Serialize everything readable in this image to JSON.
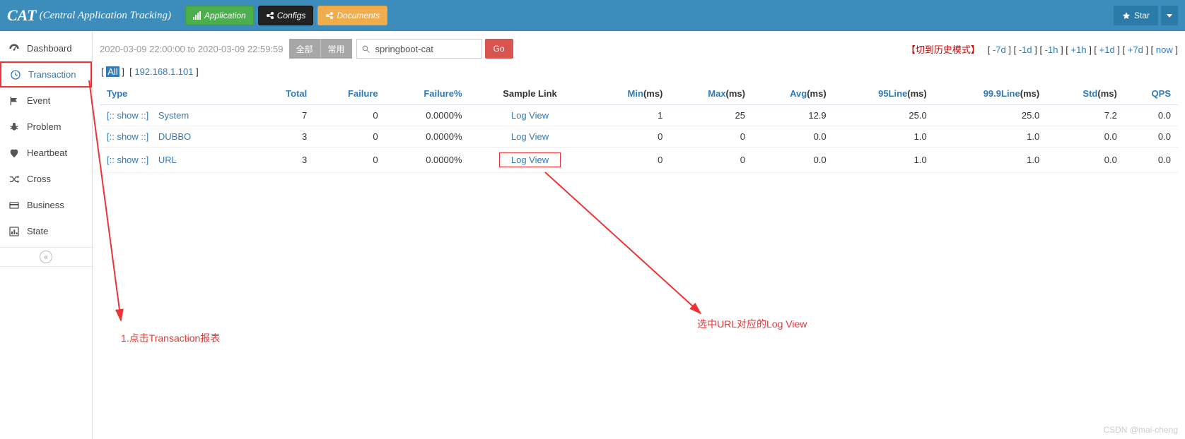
{
  "header": {
    "brand": "CAT",
    "subtitle": "(Central Application Tracking)",
    "buttons": {
      "app": "Application",
      "configs": "Configs",
      "docs": "Documents"
    },
    "star": "Star"
  },
  "sidebar": {
    "items": [
      {
        "key": "dashboard",
        "label": "Dashboard"
      },
      {
        "key": "transaction",
        "label": "Transaction",
        "active": true
      },
      {
        "key": "event",
        "label": "Event"
      },
      {
        "key": "problem",
        "label": "Problem"
      },
      {
        "key": "heartbeat",
        "label": "Heartbeat"
      },
      {
        "key": "cross",
        "label": "Cross"
      },
      {
        "key": "business",
        "label": "Business"
      },
      {
        "key": "state",
        "label": "State"
      }
    ]
  },
  "toolbar": {
    "time_range": "2020-03-09 22:00:00 to 2020-03-09 22:59:59",
    "btn_all": "全部",
    "btn_common": "常用",
    "search_value": "springboot-cat",
    "go": "Go",
    "history_label": "【切到历史模式】",
    "nav": [
      "-7d",
      "-1d",
      "-1h",
      "+1h",
      "+1d",
      "+7d",
      "now"
    ]
  },
  "filter": {
    "all": "All",
    "ip": "192.168.1.101"
  },
  "table": {
    "headers": {
      "type": "Type",
      "total": "Total",
      "failure": "Failure",
      "failure_pct": "Failure%",
      "sample": "Sample Link",
      "min": "Min",
      "max": "Max",
      "avg": "Avg",
      "p95": "95Line",
      "p999": "99.9Line",
      "std": "Std",
      "ms": "(ms)",
      "qps": "QPS"
    },
    "show_label": "[:: show ::]",
    "rows": [
      {
        "type": "System",
        "total": "7",
        "failure": "0",
        "failure_pct": "0.0000%",
        "sample": "Log View",
        "min": "1",
        "max": "25",
        "avg": "12.9",
        "p95": "25.0",
        "p999": "25.0",
        "std": "7.2",
        "qps": "0.0"
      },
      {
        "type": "DUBBO",
        "total": "3",
        "failure": "0",
        "failure_pct": "0.0000%",
        "sample": "Log View",
        "min": "0",
        "max": "0",
        "avg": "0.0",
        "p95": "1.0",
        "p999": "1.0",
        "std": "0.0",
        "qps": "0.0"
      },
      {
        "type": "URL",
        "total": "3",
        "failure": "0",
        "failure_pct": "0.0000%",
        "sample": "Log View",
        "min": "0",
        "max": "0",
        "avg": "0.0",
        "p95": "1.0",
        "p999": "1.0",
        "std": "0.0",
        "qps": "0.0",
        "highlight": true
      }
    ]
  },
  "annotations": {
    "a1": "1.点击Transaction报表",
    "a2": "选中URL对应的Log View",
    "watermark": "CSDN @mai-cheng"
  }
}
